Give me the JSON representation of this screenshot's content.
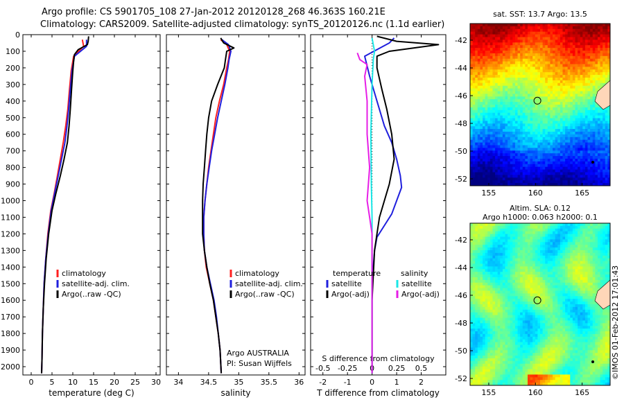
{
  "header": {
    "line1": "Argo profile: CS 5901705_108 27-Jan-2012 20120128_268 46.363S 160.21E",
    "line2": "Climatology: CARS2009. Satellite-adjusted climatology: synTS_20120126.nc (1.1d earlier)"
  },
  "stamp": "©IMOS 01-Feb-2012 17:01:43",
  "colors": {
    "climatology": "#ff1f1f",
    "satellite": "#1f1fdd",
    "argo": "#000000",
    "cyan": "#19e6e6",
    "magenta": "#e61ee6"
  },
  "chart_data": [
    {
      "type": "line",
      "xlabel": "temperature (deg C)",
      "ylabel": "",
      "xlim": [
        -2,
        31
      ],
      "ylim": [
        2050,
        0
      ],
      "xticks": [
        0,
        5,
        10,
        15,
        20,
        25,
        30
      ],
      "yticks": [
        0,
        100,
        200,
        300,
        400,
        500,
        600,
        700,
        800,
        900,
        1000,
        1100,
        1200,
        1300,
        1400,
        1500,
        1600,
        1700,
        1800,
        1900,
        2000
      ],
      "legend": [
        "climatology",
        "satellite-adj. clim.",
        "Argo(..raw -QC)"
      ],
      "series": [
        {
          "name": "climatology",
          "color": "climatology",
          "points": [
            [
              12.3,
              30
            ],
            [
              12.6,
              70
            ],
            [
              10.2,
              130
            ],
            [
              9.6,
              220
            ],
            [
              9.2,
              330
            ],
            [
              8.8,
              450
            ],
            [
              8.3,
              550
            ],
            [
              7.7,
              650
            ],
            [
              7.0,
              750
            ],
            [
              6.3,
              850
            ],
            [
              5.5,
              960
            ],
            [
              4.7,
              1060
            ],
            [
              4.0,
              1200
            ],
            [
              3.5,
              1350
            ],
            [
              3.1,
              1500
            ],
            [
              2.9,
              1650
            ],
            [
              2.7,
              1800
            ],
            [
              2.6,
              1950
            ],
            [
              2.5,
              2040
            ]
          ]
        },
        {
          "name": "satellite-adj. clim.",
          "color": "satellite",
          "points": [
            [
              13.3,
              30
            ],
            [
              13.3,
              70
            ],
            [
              10.4,
              130
            ],
            [
              9.8,
              220
            ],
            [
              9.4,
              330
            ],
            [
              9.0,
              450
            ],
            [
              8.6,
              550
            ],
            [
              8.1,
              650
            ],
            [
              7.3,
              750
            ],
            [
              6.5,
              850
            ],
            [
              5.6,
              960
            ],
            [
              4.8,
              1060
            ],
            [
              4.1,
              1200
            ],
            [
              3.5,
              1350
            ],
            [
              3.1,
              1500
            ],
            [
              2.9,
              1650
            ],
            [
              2.7,
              1800
            ],
            [
              2.6,
              1950
            ],
            [
              2.5,
              2040
            ]
          ]
        },
        {
          "name": "Argo(..raw -QC)",
          "color": "argo",
          "points": [
            [
              13.8,
              10
            ],
            [
              13.7,
              40
            ],
            [
              13.5,
              60
            ],
            [
              11.3,
              90
            ],
            [
              10.4,
              120
            ],
            [
              10.2,
              160
            ],
            [
              10.0,
              220
            ],
            [
              9.7,
              330
            ],
            [
              9.4,
              450
            ],
            [
              9.1,
              550
            ],
            [
              8.7,
              650
            ],
            [
              7.9,
              750
            ],
            [
              7.0,
              850
            ],
            [
              5.9,
              960
            ],
            [
              5.0,
              1060
            ],
            [
              4.2,
              1200
            ],
            [
              3.6,
              1350
            ],
            [
              3.2,
              1500
            ],
            [
              2.9,
              1650
            ],
            [
              2.7,
              1800
            ],
            [
              2.6,
              1950
            ],
            [
              2.5,
              2040
            ]
          ]
        }
      ]
    },
    {
      "type": "line",
      "xlabel": "salinity",
      "ylabel": "",
      "xlim": [
        33.8,
        36.1
      ],
      "ylim": [
        2050,
        0
      ],
      "xticks": [
        34,
        34.5,
        35,
        35.5,
        36
      ],
      "legend": [
        "climatology",
        "satellite-adj. clim.",
        "Argo(..raw -QC)"
      ],
      "annotations": [
        "Argo AUSTRALIA",
        "PI: Susan Wijffels"
      ],
      "series": [
        {
          "name": "climatology",
          "color": "climatology",
          "points": [
            [
              34.7,
              30
            ],
            [
              34.8,
              60
            ],
            [
              34.85,
              100
            ],
            [
              34.83,
              150
            ],
            [
              34.8,
              200
            ],
            [
              34.75,
              300
            ],
            [
              34.68,
              400
            ],
            [
              34.62,
              500
            ],
            [
              34.58,
              600
            ],
            [
              34.54,
              700
            ],
            [
              34.5,
              800
            ],
            [
              34.47,
              900
            ],
            [
              34.44,
              1000
            ],
            [
              34.42,
              1100
            ],
            [
              34.42,
              1200
            ],
            [
              34.43,
              1300
            ],
            [
              34.46,
              1400
            ],
            [
              34.52,
              1500
            ],
            [
              34.58,
              1600
            ],
            [
              34.62,
              1700
            ],
            [
              34.66,
              1800
            ],
            [
              34.69,
              1900
            ],
            [
              34.71,
              2040
            ]
          ]
        },
        {
          "name": "satellite-adj. clim.",
          "color": "satellite",
          "points": [
            [
              34.72,
              30
            ],
            [
              34.83,
              60
            ],
            [
              34.87,
              100
            ],
            [
              34.84,
              150
            ],
            [
              34.82,
              200
            ],
            [
              34.77,
              300
            ],
            [
              34.71,
              400
            ],
            [
              34.65,
              500
            ],
            [
              34.6,
              600
            ],
            [
              34.55,
              700
            ],
            [
              34.51,
              800
            ],
            [
              34.47,
              900
            ],
            [
              34.44,
              1000
            ],
            [
              34.42,
              1100
            ],
            [
              34.42,
              1200
            ],
            [
              34.43,
              1300
            ],
            [
              34.47,
              1400
            ],
            [
              34.53,
              1500
            ],
            [
              34.59,
              1600
            ],
            [
              34.63,
              1700
            ],
            [
              34.66,
              1800
            ],
            [
              34.69,
              1900
            ],
            [
              34.71,
              2040
            ]
          ]
        },
        {
          "name": "Argo(..raw -QC)",
          "color": "argo",
          "points": [
            [
              34.7,
              20
            ],
            [
              34.75,
              50
            ],
            [
              34.92,
              80
            ],
            [
              34.8,
              100
            ],
            [
              34.78,
              150
            ],
            [
              34.76,
              200
            ],
            [
              34.65,
              300
            ],
            [
              34.55,
              400
            ],
            [
              34.5,
              500
            ],
            [
              34.47,
              600
            ],
            [
              34.45,
              700
            ],
            [
              34.43,
              800
            ],
            [
              34.41,
              900
            ],
            [
              34.4,
              1000
            ],
            [
              34.4,
              1100
            ],
            [
              34.4,
              1200
            ],
            [
              34.43,
              1300
            ],
            [
              34.47,
              1400
            ],
            [
              34.52,
              1500
            ],
            [
              34.58,
              1600
            ],
            [
              34.62,
              1700
            ],
            [
              34.66,
              1800
            ],
            [
              34.69,
              1900
            ],
            [
              34.71,
              2040
            ]
          ]
        }
      ]
    },
    {
      "type": "line",
      "xlabel": "T difference from climatology",
      "xlabel_top": "S difference from climatology",
      "ylabel": "",
      "xlim": [
        -2.5,
        3.0
      ],
      "ylim": [
        2050,
        0
      ],
      "xticks": [
        -2,
        -1,
        0,
        1,
        2
      ],
      "xticks_top": [
        "-0.5",
        "-0.25",
        "0",
        "0.25",
        "0.5"
      ],
      "legend": {
        "temperature": [
          "satellite",
          "Argo(-adj)"
        ],
        "salinity": [
          "satellite",
          "Argo(-adj)"
        ]
      },
      "series": [
        {
          "name": "temperature satellite",
          "color": "satellite",
          "points": [
            [
              0.9,
              20
            ],
            [
              0.7,
              50
            ],
            [
              -0.3,
              130
            ],
            [
              -0.1,
              250
            ],
            [
              0.2,
              400
            ],
            [
              0.5,
              550
            ],
            [
              0.8,
              650
            ],
            [
              1.0,
              750
            ],
            [
              1.15,
              850
            ],
            [
              1.2,
              920
            ],
            [
              1.0,
              1000
            ],
            [
              0.8,
              1080
            ],
            [
              0.5,
              1150
            ],
            [
              0.2,
              1220
            ],
            [
              0.1,
              1300
            ],
            [
              0.05,
              1400
            ],
            [
              0.0,
              1500
            ],
            [
              0.0,
              1700
            ],
            [
              0.0,
              1900
            ],
            [
              0.0,
              2040
            ]
          ]
        },
        {
          "name": "temperature Argo(-adj)",
          "color": "argo",
          "points": [
            [
              0.2,
              10
            ],
            [
              1.0,
              40
            ],
            [
              2.7,
              60
            ],
            [
              0.7,
              100
            ],
            [
              0.2,
              130
            ],
            [
              0.2,
              200
            ],
            [
              0.4,
              330
            ],
            [
              0.6,
              450
            ],
            [
              0.8,
              600
            ],
            [
              0.9,
              750
            ],
            [
              0.7,
              900
            ],
            [
              0.5,
              1000
            ],
            [
              0.3,
              1100
            ],
            [
              0.2,
              1200
            ],
            [
              0.1,
              1300
            ],
            [
              0.05,
              1450
            ],
            [
              0.0,
              1600
            ],
            [
              0.0,
              1800
            ],
            [
              0.0,
              2040
            ]
          ]
        },
        {
          "name": "salinity satellite",
          "color": "cyan",
          "points": [
            [
              0.0,
              20
            ],
            [
              0.1,
              100
            ],
            [
              0.05,
              150
            ],
            [
              0.0,
              300
            ],
            [
              -0.05,
              600
            ],
            [
              -0.03,
              900
            ],
            [
              0.0,
              1100
            ],
            [
              0.0,
              1300
            ],
            [
              0.0,
              1500
            ],
            [
              0.0,
              1700
            ],
            [
              0.0,
              2040
            ]
          ]
        },
        {
          "name": "salinity Argo(-adj)",
          "color": "magenta",
          "points": [
            [
              -0.6,
              110
            ],
            [
              -0.5,
              150
            ],
            [
              -0.2,
              180
            ],
            [
              -0.3,
              250
            ],
            [
              -0.2,
              400
            ],
            [
              -0.2,
              600
            ],
            [
              -0.1,
              800
            ],
            [
              -0.2,
              1000
            ],
            [
              -0.1,
              1100
            ],
            [
              0.0,
              1200
            ],
            [
              0.0,
              1400
            ],
            [
              0.0,
              1600
            ],
            [
              0.0,
              2040
            ]
          ]
        }
      ]
    },
    {
      "type": "heatmap",
      "title": "sat. SST: 13.7 Argo: 13.5",
      "xticks": [
        "155",
        "160",
        "165"
      ],
      "yticks": [
        "-42",
        "-44",
        "-46",
        "-48",
        "-50",
        "-52"
      ],
      "xlim": [
        153,
        168
      ],
      "ylim": [
        -52.5,
        -40.8
      ],
      "marker": [
        160.21,
        -46.363
      ]
    },
    {
      "type": "heatmap",
      "title": "Altim. SLA: 0.12",
      "subtitle": "Argo h1000: 0.063 h2000: 0.1",
      "xticks": [
        "155",
        "160",
        "165"
      ],
      "yticks": [
        "-42",
        "-44",
        "-46",
        "-48",
        "-50",
        "-52"
      ],
      "xlim": [
        153,
        168
      ],
      "ylim": [
        -52.5,
        -40.8
      ],
      "marker": [
        160.21,
        -46.363
      ]
    }
  ]
}
